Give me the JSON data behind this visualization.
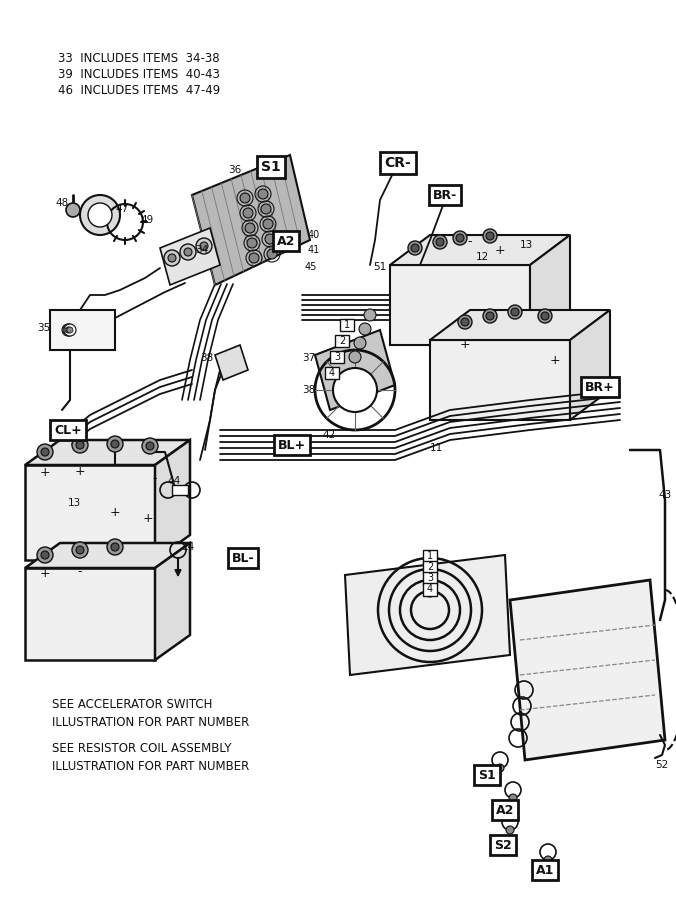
{
  "bg_color": "#ffffff",
  "line_color": "#111111",
  "label_notes": [
    "33  INCLUDES ITEMS  34-38",
    "39  INCLUDES ITEMS  40-43",
    "46  INCLUDES ITEMS  47-49"
  ],
  "note_lines": [
    "SEE ACCELERATOR SWITCH",
    "ILLUSTRATION FOR PART NUMBER",
    "SEE RESISTOR COIL ASSEMBLY",
    "ILLUSTRATION FOR PART NUMBER"
  ],
  "fig_w": 6.76,
  "fig_h": 9.05,
  "dpi": 100
}
